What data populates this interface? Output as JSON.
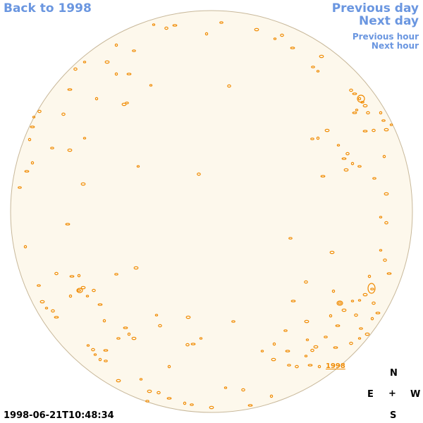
{
  "nav": {
    "back_label": "Back to 1998",
    "previous_day_label": "Previous day",
    "next_day_label": "Next day",
    "previous_hour_label": "Previous hour",
    "next_hour_label": "Next hour"
  },
  "compass": {
    "north": "N",
    "east": "E",
    "center": "+",
    "west": "W",
    "south": "S"
  },
  "timestamp": "1998-06-21T10:48:34",
  "region_label": "1998",
  "colors": {
    "disk_fill": "#fdf8ec",
    "disk_border": "#c8b89a",
    "contour": "#f08a00",
    "link": "#6a96e0"
  }
}
